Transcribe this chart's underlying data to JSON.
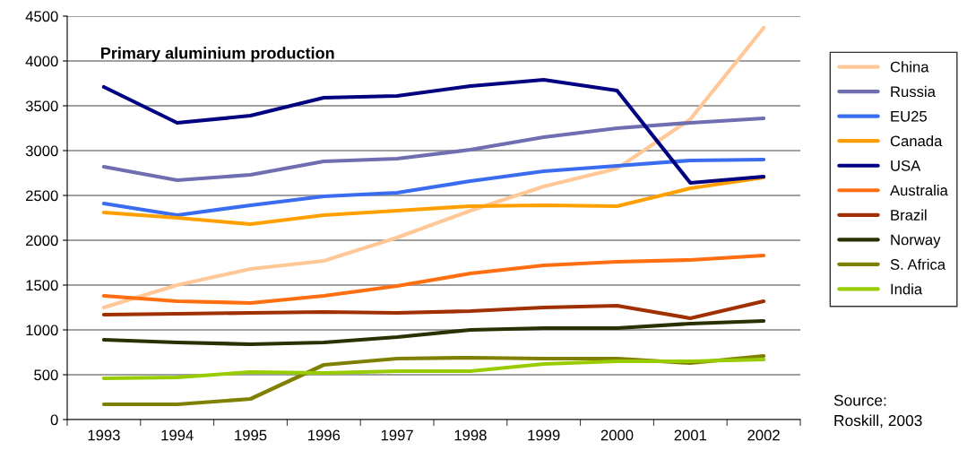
{
  "chart_data": {
    "type": "line",
    "title": "Primary aluminium production",
    "categories": [
      "1993",
      "1994",
      "1995",
      "1996",
      "1997",
      "1998",
      "1999",
      "2000",
      "2001",
      "2002"
    ],
    "series": [
      {
        "name": "China",
        "color": "#ffc896",
        "values": [
          1250,
          1500,
          1680,
          1770,
          2030,
          2330,
          2600,
          2800,
          3350,
          4370
        ]
      },
      {
        "name": "Russia",
        "color": "#6e6eb0",
        "values": [
          2820,
          2670,
          2730,
          2880,
          2910,
          3010,
          3150,
          3250,
          3310,
          3360
        ]
      },
      {
        "name": "EU25",
        "color": "#3a6cf0",
        "values": [
          2410,
          2280,
          2390,
          2490,
          2530,
          2660,
          2770,
          2830,
          2890,
          2900
        ]
      },
      {
        "name": "Canada",
        "color": "#ffa000",
        "values": [
          2310,
          2250,
          2180,
          2280,
          2330,
          2380,
          2390,
          2380,
          2580,
          2700
        ]
      },
      {
        "name": "USA",
        "color": "#000080",
        "values": [
          3710,
          3310,
          3390,
          3590,
          3610,
          3720,
          3790,
          3670,
          2640,
          2710
        ]
      },
      {
        "name": "Australia",
        "color": "#ff6e10",
        "values": [
          1380,
          1320,
          1300,
          1380,
          1490,
          1630,
          1720,
          1760,
          1780,
          1830
        ]
      },
      {
        "name": "Brazil",
        "color": "#a03000",
        "values": [
          1170,
          1180,
          1190,
          1200,
          1190,
          1210,
          1250,
          1270,
          1130,
          1320
        ]
      },
      {
        "name": "Norway",
        "color": "#2a3000",
        "values": [
          890,
          860,
          840,
          860,
          920,
          1000,
          1020,
          1020,
          1070,
          1100
        ]
      },
      {
        "name": "S. Africa",
        "color": "#7f8000",
        "values": [
          170,
          170,
          230,
          610,
          680,
          690,
          680,
          680,
          630,
          710
        ]
      },
      {
        "name": "India",
        "color": "#99cc00",
        "values": [
          460,
          470,
          530,
          520,
          540,
          540,
          620,
          650,
          650,
          670
        ]
      }
    ],
    "ylim": [
      0,
      4500
    ],
    "yticks": [
      0,
      500,
      1000,
      1500,
      2000,
      2500,
      3000,
      3500,
      4000,
      4500
    ],
    "grid": "y",
    "legend": "right",
    "marker": "none",
    "line_style": "solid",
    "annotations": [
      "Source:\nRoskill, 2003"
    ]
  }
}
